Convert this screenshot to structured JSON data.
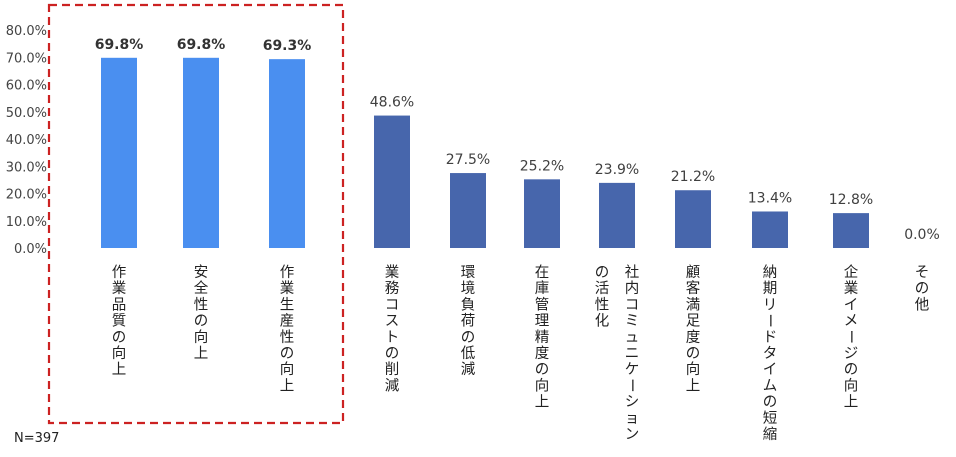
{
  "chart_data": {
    "type": "bar",
    "categories": [
      "作業品質の向上",
      "安全性の向上",
      "作業生産性の向上",
      "業務コストの削減",
      "環境負荷の低減",
      "在庫管理精度の向上",
      "社内コミュニケーションの活性化",
      "顧客満足度の向上",
      "納期リードタイムの短縮",
      "企業イメージの向上",
      "その他"
    ],
    "category_lines": [
      [
        "作業品質の向上"
      ],
      [
        "安全性の向上"
      ],
      [
        "作業生産性の向上"
      ],
      [
        "業務コストの削減"
      ],
      [
        "環境負荷の低減"
      ],
      [
        "在庫管理精度の向上"
      ],
      [
        "社内コミュニケーション",
        "の活性化"
      ],
      [
        "顧客満足度の向上"
      ],
      [
        "納期リードタイムの短縮"
      ],
      [
        "企業イメージの向上"
      ],
      [
        "その他"
      ]
    ],
    "values": [
      69.8,
      69.8,
      69.3,
      48.6,
      27.5,
      25.2,
      23.9,
      21.2,
      13.4,
      12.8,
      0.0
    ],
    "data_labels": [
      "69.8%",
      "69.8%",
      "69.3%",
      "48.6%",
      "27.5%",
      "25.2%",
      "23.9%",
      "21.2%",
      "13.4%",
      "12.8%",
      "0.0%"
    ],
    "highlighted_count": 3,
    "yticks": [
      "0.0%",
      "10.0%",
      "20.0%",
      "30.0%",
      "40.0%",
      "50.0%",
      "60.0%",
      "70.0%",
      "80.0%"
    ],
    "ylim": [
      0,
      80
    ],
    "colors": {
      "highlight": "#4a8ff0",
      "normal": "#4766ac",
      "box": "#cc2222"
    },
    "highlight_box": "dashed red outline around first three categories",
    "grid": false,
    "note": "N=397"
  }
}
